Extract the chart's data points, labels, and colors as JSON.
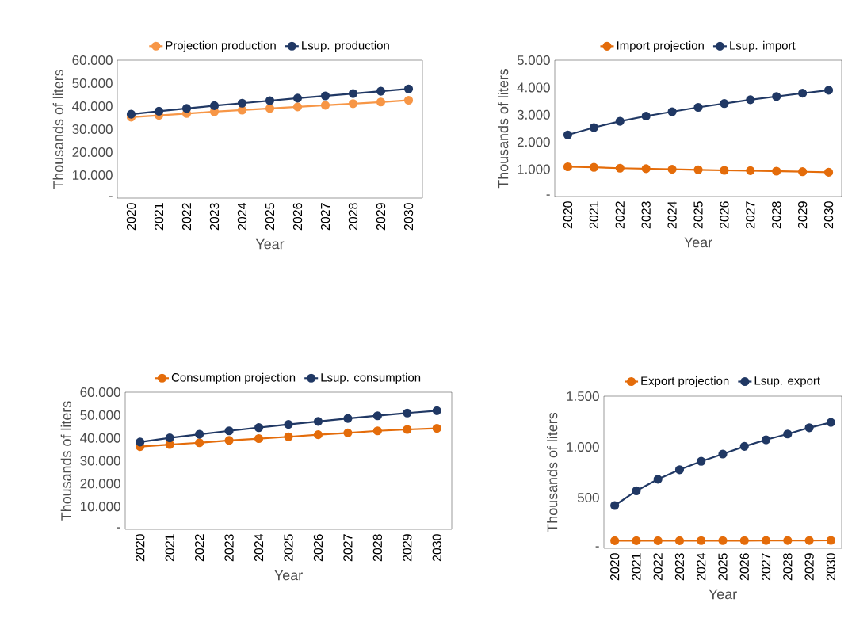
{
  "chart_data": [
    {
      "type": "line",
      "xlabel": "Year",
      "ylabel": "Thousands of liters",
      "categories": [
        "2020",
        "2021",
        "2022",
        "2023",
        "2024",
        "2025",
        "2026",
        "2027",
        "2028",
        "2029",
        "2030"
      ],
      "series": [
        {
          "name": "Projection production",
          "color": "#f79646",
          "values": [
            35200,
            36000,
            36800,
            37600,
            38300,
            39000,
            39700,
            40400,
            41100,
            41800,
            42600
          ]
        },
        {
          "name": "Lsup. production",
          "color": "#203864",
          "values": [
            36500,
            37800,
            39000,
            40200,
            41300,
            42400,
            43500,
            44500,
            45500,
            46500,
            47500
          ]
        }
      ],
      "ylim": [
        0,
        60000
      ],
      "yticks": [
        {
          "value": 0,
          "label": "-"
        },
        {
          "value": 10000,
          "label": "10.000"
        },
        {
          "value": 20000,
          "label": "20.000"
        },
        {
          "value": 30000,
          "label": "30.000"
        },
        {
          "value": 40000,
          "label": "40.000"
        },
        {
          "value": 50000,
          "label": "50.000"
        },
        {
          "value": 60000,
          "label": "60.000"
        }
      ],
      "legend": "top",
      "marker": "circle",
      "grid": false
    },
    {
      "type": "line",
      "xlabel": "Year",
      "ylabel": "Thousands of liters",
      "categories": [
        "2020",
        "2021",
        "2022",
        "2023",
        "2024",
        "2025",
        "2026",
        "2027",
        "2028",
        "2029",
        "2030"
      ],
      "series": [
        {
          "name": "Import projection",
          "color": "#e46c0a",
          "values": [
            1090,
            1070,
            1040,
            1020,
            1000,
            980,
            960,
            950,
            930,
            910,
            890
          ]
        },
        {
          "name": "Lsup. import",
          "color": "#203864",
          "values": [
            2260,
            2530,
            2760,
            2950,
            3110,
            3270,
            3410,
            3550,
            3670,
            3790,
            3900
          ]
        }
      ],
      "ylim": [
        0,
        5000
      ],
      "yticks": [
        {
          "value": 0,
          "label": "-"
        },
        {
          "value": 1000,
          "label": "1.000"
        },
        {
          "value": 2000,
          "label": "2.000"
        },
        {
          "value": 3000,
          "label": "3.000"
        },
        {
          "value": 4000,
          "label": "4.000"
        },
        {
          "value": 5000,
          "label": "5.000"
        }
      ],
      "legend": "top",
      "marker": "circle",
      "grid": false
    },
    {
      "type": "line",
      "xlabel": "Year",
      "ylabel": "Thousands of liters",
      "categories": [
        "2020",
        "2021",
        "2022",
        "2023",
        "2024",
        "2025",
        "2026",
        "2027",
        "2028",
        "2029",
        "2030"
      ],
      "series": [
        {
          "name": "Consumption projection",
          "color": "#e46c0a",
          "values": [
            36200,
            37100,
            37900,
            38900,
            39700,
            40500,
            41400,
            42200,
            43100,
            43700,
            44200
          ]
        },
        {
          "name": "Lsup. consumption",
          "color": "#203864",
          "values": [
            38200,
            40000,
            41600,
            43100,
            44500,
            45900,
            47200,
            48500,
            49700,
            50900,
            51900
          ]
        }
      ],
      "ylim": [
        0,
        60000
      ],
      "yticks": [
        {
          "value": 0,
          "label": "-"
        },
        {
          "value": 10000,
          "label": "10.000"
        },
        {
          "value": 20000,
          "label": "20.000"
        },
        {
          "value": 30000,
          "label": "30.000"
        },
        {
          "value": 40000,
          "label": "40.000"
        },
        {
          "value": 50000,
          "label": "50.000"
        },
        {
          "value": 60000,
          "label": "60.000"
        }
      ],
      "legend": "top",
      "marker": "circle",
      "grid": false
    },
    {
      "type": "line",
      "xlabel": "Year",
      "ylabel": "Thousands of liters",
      "categories": [
        "2020",
        "2021",
        "2022",
        "2023",
        "2024",
        "2025",
        "2026",
        "2027",
        "2028",
        "2029",
        "2030"
      ],
      "series": [
        {
          "name": "Export projection",
          "color": "#e46c0a",
          "values": [
            75,
            75,
            75,
            75,
            76,
            76,
            76,
            77,
            77,
            77,
            78
          ]
        },
        {
          "name": "Lsup. export",
          "color": "#203864",
          "values": [
            422,
            567,
            681,
            775,
            858,
            930,
            1005,
            1070,
            1127,
            1189,
            1241
          ]
        }
      ],
      "ylim": [
        0,
        1500
      ],
      "yticks": [
        {
          "value": 0,
          "label": "-"
        },
        500,
        {
          "value": 1000,
          "label": "1.000"
        },
        {
          "value": 1500,
          "label": "1.500"
        }
      ],
      "legend": "top",
      "marker": "circle",
      "grid": false
    }
  ]
}
